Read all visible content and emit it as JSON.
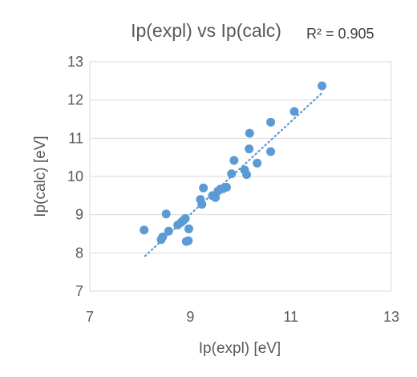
{
  "chart_data": {
    "type": "scatter",
    "title": "Ip(expl) vs Ip(calc)",
    "annotation": "R² = 0.905",
    "xlabel": "Ip(expl) [eV]",
    "ylabel": "Ip(calc) [eV]",
    "xlim": [
      7,
      13
    ],
    "ylim": [
      7,
      13
    ],
    "x_ticks": [
      "7",
      "9",
      "11",
      "13"
    ],
    "y_ticks": [
      "7",
      "8",
      "9",
      "10",
      "11",
      "12",
      "13"
    ],
    "grid": "horizontal",
    "trendline": {
      "type": "linear",
      "x": [
        8.1,
        11.65
      ],
      "y": [
        7.92,
        12.22
      ],
      "style": "dotted"
    },
    "marker_color": "#5b9bd5",
    "points": [
      {
        "x": 8.08,
        "y": 8.6
      },
      {
        "x": 8.42,
        "y": 8.35
      },
      {
        "x": 8.45,
        "y": 8.42
      },
      {
        "x": 8.52,
        "y": 9.02
      },
      {
        "x": 8.57,
        "y": 8.57
      },
      {
        "x": 8.75,
        "y": 8.73
      },
      {
        "x": 8.82,
        "y": 8.8
      },
      {
        "x": 8.86,
        "y": 8.85
      },
      {
        "x": 8.9,
        "y": 8.9
      },
      {
        "x": 8.92,
        "y": 8.3
      },
      {
        "x": 8.96,
        "y": 8.32
      },
      {
        "x": 8.97,
        "y": 8.63
      },
      {
        "x": 9.2,
        "y": 9.4
      },
      {
        "x": 9.23,
        "y": 9.27
      },
      {
        "x": 9.26,
        "y": 9.7
      },
      {
        "x": 9.44,
        "y": 9.5
      },
      {
        "x": 9.5,
        "y": 9.45
      },
      {
        "x": 9.55,
        "y": 9.62
      },
      {
        "x": 9.6,
        "y": 9.67
      },
      {
        "x": 9.65,
        "y": 9.68
      },
      {
        "x": 9.72,
        "y": 9.72
      },
      {
        "x": 9.82,
        "y": 10.07
      },
      {
        "x": 9.87,
        "y": 10.42
      },
      {
        "x": 10.08,
        "y": 10.17
      },
      {
        "x": 10.12,
        "y": 10.05
      },
      {
        "x": 10.17,
        "y": 10.72
      },
      {
        "x": 10.18,
        "y": 11.13
      },
      {
        "x": 10.33,
        "y": 10.35
      },
      {
        "x": 10.6,
        "y": 11.42
      },
      {
        "x": 10.6,
        "y": 10.65
      },
      {
        "x": 11.07,
        "y": 11.7
      },
      {
        "x": 11.62,
        "y": 12.37
      }
    ]
  }
}
